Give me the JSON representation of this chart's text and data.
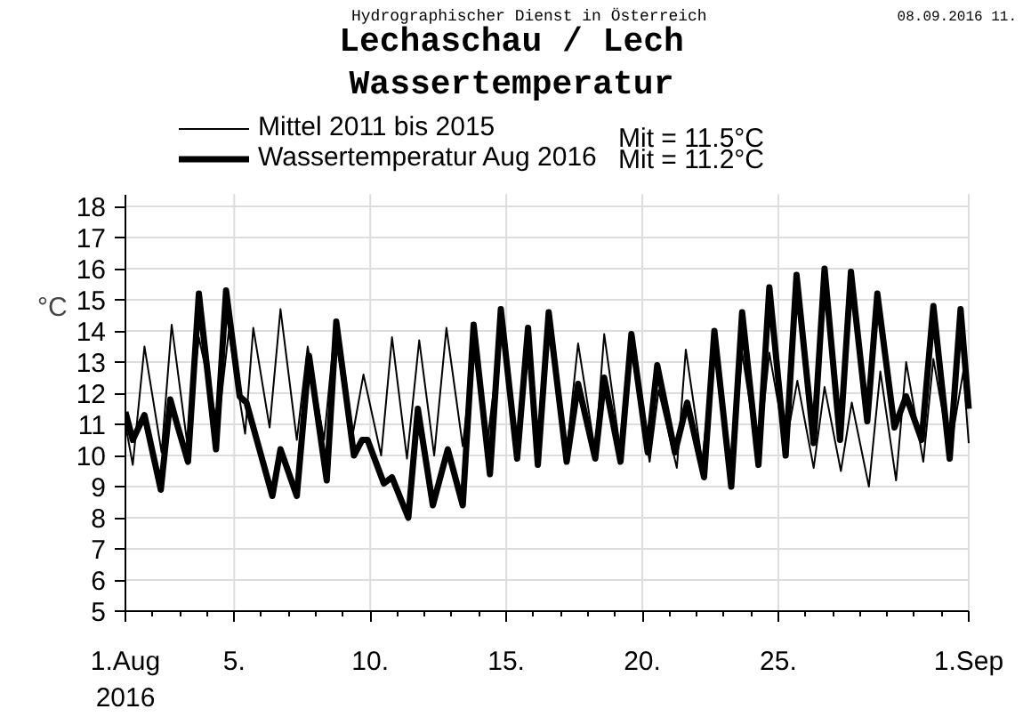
{
  "chart_data": {
    "type": "line",
    "title": "Lechaschau / Lech",
    "subtitle": "Wassertemperatur",
    "ylabel": "°C",
    "annotations": [
      "Hydrographischer Dienst in Österreich",
      "08.09.2016 11.",
      "Mit = 11.5°C",
      "Mit = 11.2°C"
    ],
    "series": [
      {
        "name": "Mittel 2011 bis 2015",
        "color": "#000000",
        "x": [
          1,
          1.27,
          1.7,
          2.33,
          2.7,
          3.27,
          3.7,
          4.4,
          4.8,
          5.4,
          5.7,
          6.3,
          6.7,
          7.3,
          7.7,
          8.3,
          8.7,
          9.3,
          9.75,
          10.4,
          10.8,
          11.35,
          11.8,
          12.35,
          12.8,
          13.4,
          13.8,
          14.3,
          14.8,
          15.4,
          15.8,
          16.16,
          16.56,
          17.22,
          17.64,
          18.27,
          18.6,
          19.2,
          19.6,
          20.27,
          20.6,
          21.27,
          21.6,
          22.2,
          22.65,
          23.27,
          23.67,
          24.27,
          24.67,
          25.27,
          25.7,
          26.3,
          26.7,
          27.3,
          27.7,
          28.33,
          28.75,
          29.33,
          29.7,
          30.33,
          30.7,
          31.3,
          31.8,
          32
        ],
        "values": [
          11.0,
          9.7,
          13.5,
          10.1,
          14.2,
          10.4,
          13.8,
          10.9,
          14.0,
          10.7,
          14.1,
          10.9,
          14.7,
          10.5,
          13.5,
          10.5,
          14.1,
          10.4,
          12.6,
          10.0,
          13.8,
          9.9,
          13.7,
          10.0,
          14.1,
          10.3,
          13.5,
          10.4,
          14.0,
          10.5,
          13.9,
          9.9,
          14.2,
          10.1,
          13.6,
          10.1,
          13.9,
          10.1,
          13.4,
          9.8,
          12.1,
          9.6,
          13.4,
          9.8,
          13.5,
          9.4,
          13.3,
          9.9,
          13.3,
          10.3,
          12.4,
          9.6,
          12.2,
          9.5,
          11.7,
          9.0,
          12.7,
          9.2,
          13.0,
          9.8,
          13.1,
          10.1,
          12.7,
          10.4
        ]
      },
      {
        "name": "Wassertemperatur Aug 2016",
        "color": "#000000",
        "x": [
          1,
          1.27,
          1.7,
          2.3,
          2.65,
          2.9,
          3.3,
          3.7,
          4.33,
          4.7,
          5.2,
          5.45,
          6.4,
          6.7,
          7.3,
          7.75,
          8.4,
          8.75,
          9.4,
          9.7,
          9.9,
          10.5,
          10.8,
          11.4,
          11.75,
          12.3,
          12.85,
          13.4,
          13.8,
          14.4,
          14.8,
          15.4,
          15.8,
          16.16,
          16.56,
          17.22,
          17.64,
          18.27,
          18.6,
          19.2,
          19.6,
          20.2,
          20.55,
          21.2,
          21.65,
          22.27,
          22.65,
          23.27,
          23.67,
          24.27,
          24.67,
          25.27,
          25.67,
          26.3,
          26.7,
          27.27,
          27.67,
          28.27,
          28.64,
          29.27,
          29.7,
          30.27,
          30.7,
          31.3,
          31.7,
          32
        ],
        "values": [
          11.4,
          10.5,
          11.3,
          8.9,
          11.8,
          11.0,
          9.8,
          15.2,
          10.2,
          15.3,
          11.9,
          11.7,
          8.7,
          10.2,
          8.7,
          13.2,
          9.2,
          14.3,
          10.0,
          10.5,
          10.5,
          9.1,
          9.3,
          8.0,
          11.5,
          8.4,
          10.2,
          8.4,
          14.2,
          9.4,
          14.7,
          9.9,
          14.1,
          9.7,
          14.6,
          9.8,
          12.3,
          9.9,
          12.5,
          9.8,
          13.9,
          10.1,
          12.9,
          10.1,
          11.7,
          9.3,
          14.0,
          9.0,
          14.6,
          9.7,
          15.4,
          10.0,
          15.8,
          10.4,
          16.0,
          10.5,
          15.9,
          11.1,
          15.2,
          10.9,
          11.9,
          10.5,
          14.8,
          9.9,
          14.7,
          11.5
        ]
      }
    ],
    "xlim": [
      1,
      32
    ],
    "xticks": [
      {
        "value": 1,
        "label": "1.Aug\n2016"
      },
      {
        "value": 2,
        "label": null
      },
      {
        "value": 3,
        "label": null
      },
      {
        "value": 4,
        "label": null
      },
      {
        "value": 5,
        "label": "5."
      },
      {
        "value": 6,
        "label": null
      },
      {
        "value": 7,
        "label": null
      },
      {
        "value": 8,
        "label": null
      },
      {
        "value": 9,
        "label": null
      },
      {
        "value": 10,
        "label": "10."
      },
      {
        "value": 11,
        "label": null
      },
      {
        "value": 12,
        "label": null
      },
      {
        "value": 13,
        "label": null
      },
      {
        "value": 14,
        "label": null
      },
      {
        "value": 15,
        "label": "15."
      },
      {
        "value": 16,
        "label": null
      },
      {
        "value": 17,
        "label": null
      },
      {
        "value": 18,
        "label": null
      },
      {
        "value": 19,
        "label": null
      },
      {
        "value": 20,
        "label": "20."
      },
      {
        "value": 21,
        "label": null
      },
      {
        "value": 22,
        "label": null
      },
      {
        "value": 23,
        "label": null
      },
      {
        "value": 24,
        "label": null
      },
      {
        "value": 25,
        "label": "25."
      },
      {
        "value": 26,
        "label": null
      },
      {
        "value": 27,
        "label": null
      },
      {
        "value": 28,
        "label": null
      },
      {
        "value": 29,
        "label": null
      },
      {
        "value": 30,
        "label": null
      },
      {
        "value": 31,
        "label": null
      },
      {
        "value": 32,
        "label": "1.Sep"
      }
    ],
    "ylim": [
      5,
      18.4
    ],
    "yticks": [
      5,
      6,
      7,
      8,
      9,
      10,
      11,
      12,
      13,
      14,
      15,
      16,
      17,
      18
    ],
    "grid": true,
    "legend": "top left",
    "marker": "none",
    "line_style": "solid"
  }
}
